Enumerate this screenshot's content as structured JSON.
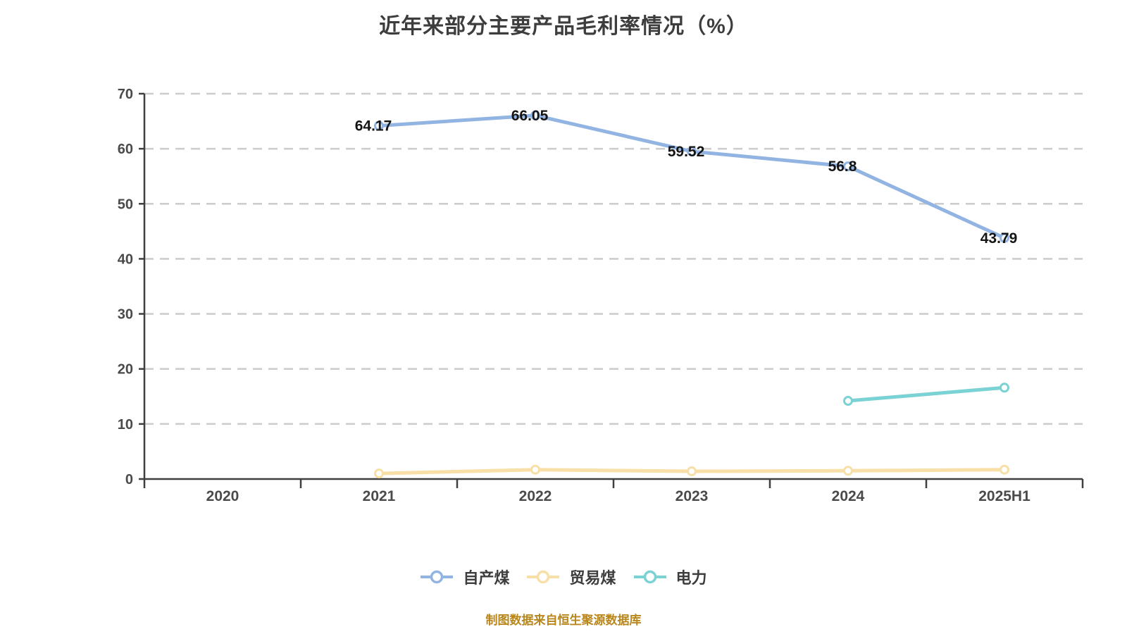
{
  "chart_data": {
    "type": "line",
    "title": "近年来部分主要产品毛利率情况（%）",
    "categories": [
      "2020",
      "2021",
      "2022",
      "2023",
      "2024",
      "2025H1"
    ],
    "series": [
      {
        "name": "自产煤",
        "color": "#92b4e2",
        "values": [
          null,
          64.17,
          66.05,
          59.52,
          56.8,
          43.79
        ],
        "labeled": true,
        "data_labels": [
          "",
          "64.17",
          "66.05",
          "59.52",
          "56.8",
          "43.79"
        ]
      },
      {
        "name": "贸易煤",
        "color": "#f8dfa8",
        "values": [
          null,
          1.0,
          1.7,
          1.4,
          1.5,
          1.7
        ],
        "labeled": false
      },
      {
        "name": "电力",
        "color": "#7ad2d4",
        "values": [
          null,
          null,
          null,
          null,
          14.2,
          16.6
        ],
        "labeled": false
      }
    ],
    "xlabel": "",
    "ylabel": "",
    "ylim": [
      0,
      70
    ],
    "ytick_step": 10,
    "yticks": [
      0,
      10,
      20,
      30,
      40,
      50,
      60,
      70
    ],
    "grid": "horizontal-dashed",
    "legend_position": "bottom"
  },
  "footer": {
    "text": "制图数据来自恒生聚源数据库"
  },
  "colors": {
    "background": "#ffffff",
    "title": "#3d3d3d",
    "axis_line": "#3f3f3f",
    "axis_label": "#4a4a4a",
    "grid_line": "#cdcdcd",
    "data_label": "#141414",
    "marker_fill": "#ffffff",
    "footer_text": "#b8861b",
    "series_blue": "#92b4e2",
    "series_yellow": "#f8dfa8",
    "series_cyan": "#7ad2d4"
  }
}
